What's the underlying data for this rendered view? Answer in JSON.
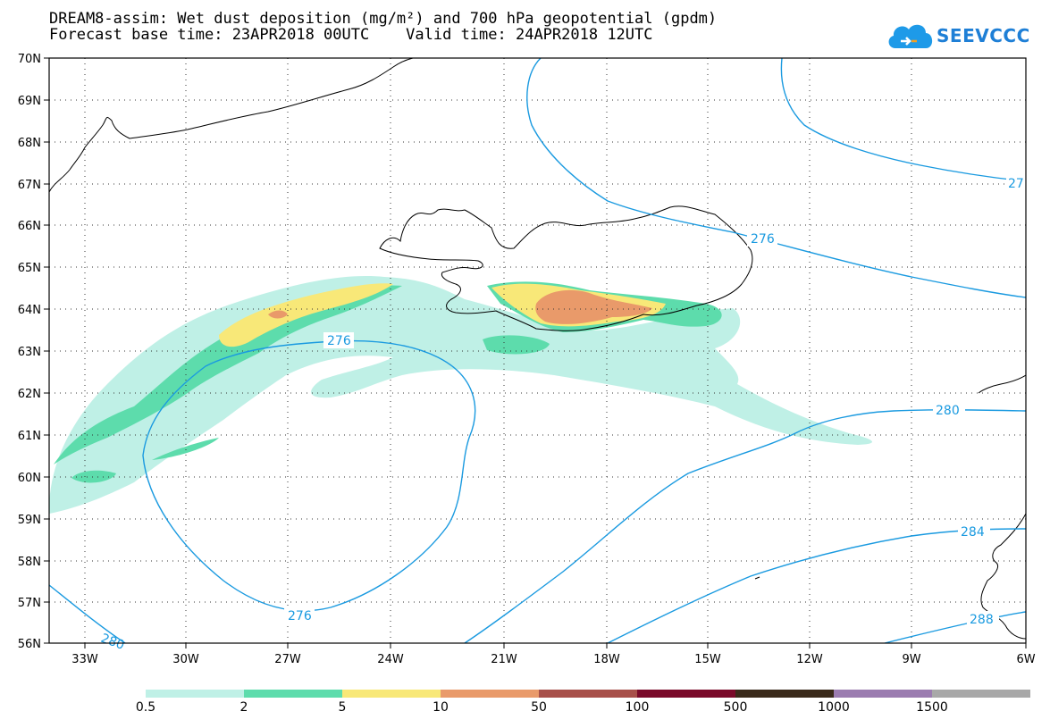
{
  "header": {
    "title_line1": "DREAM8-assim: Wet dust deposition (mg/m²) and 700 hPa geopotential (gpdm)",
    "title_line2": "Forecast base time: 23APR2018 00UTC    Valid time: 24APR2018 12UTC"
  },
  "logo": {
    "text": "SEEVCCC",
    "icon": "cloud-icon"
  },
  "map": {
    "lat_labels": [
      "70N",
      "69N",
      "68N",
      "67N",
      "66N",
      "65N",
      "64N",
      "63N",
      "62N",
      "61N",
      "60N",
      "59N",
      "58N",
      "57N",
      "56N"
    ],
    "lon_labels": [
      "33W",
      "30W",
      "27W",
      "24W",
      "21W",
      "18W",
      "15W",
      "12W",
      "9W",
      "6W"
    ],
    "contour_labels": [
      "276",
      "276",
      "276",
      "27",
      "280",
      "284",
      "288",
      "280"
    ]
  },
  "colorbar": {
    "labels": [
      "0.5",
      "2",
      "5",
      "10",
      "50",
      "100",
      "500",
      "1000",
      "1500"
    ],
    "colors": [
      "#bff0e6",
      "#5ddcac",
      "#f8e878",
      "#e99a6a",
      "#a8504a",
      "#7a0a2a",
      "#3a2a1a",
      "#9b7cb0",
      "#a8a8a8"
    ]
  }
}
